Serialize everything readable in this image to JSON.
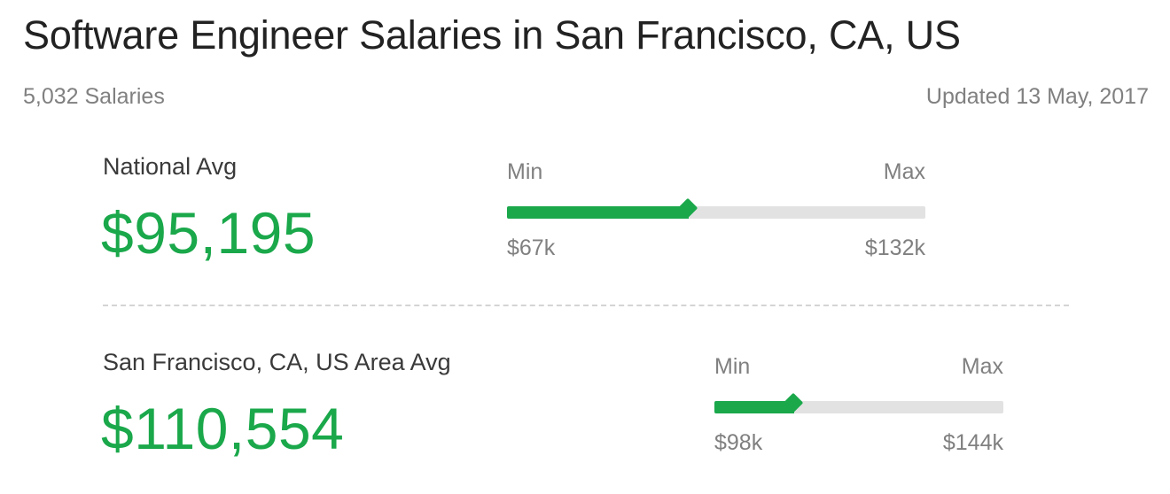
{
  "header": {
    "title": "Software Engineer Salaries in San Francisco, CA, US",
    "salary_count": "5,032 Salaries",
    "updated": "Updated 13 May, 2017"
  },
  "national": {
    "label": "National Avg",
    "value": "$95,195",
    "range": {
      "min_label": "Min",
      "max_label": "Max",
      "min_value": "$67k",
      "max_value": "$132k",
      "fraction": 0.435
    }
  },
  "area": {
    "label": "San Francisco, CA, US Area Avg",
    "value": "$110,554",
    "range": {
      "min_label": "Min",
      "max_label": "Max",
      "min_value": "$98k",
      "max_value": "$144k",
      "fraction": 0.275
    }
  },
  "colors": {
    "accent": "#1aa84b",
    "track": "#e2e2e2",
    "muted_text": "#808080"
  }
}
